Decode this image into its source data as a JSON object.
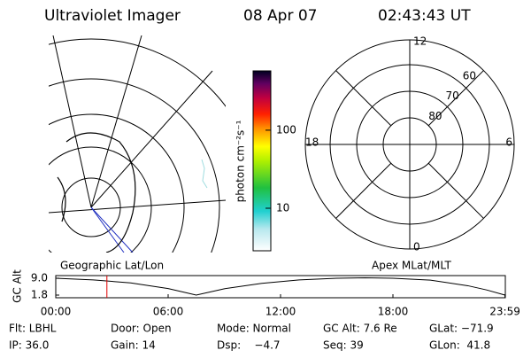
{
  "header": {
    "title": "Ultraviolet Imager",
    "date": "08 Apr 07",
    "time": "02:43:43 UT"
  },
  "colorbar": {
    "label": "photon cm⁻²s⁻¹",
    "log": true,
    "clim": [
      2.85,
      575
    ],
    "ticks": [
      10,
      100
    ]
  },
  "polar": {
    "mlt_labels": [
      12,
      6,
      0,
      18
    ],
    "lat_labels": [
      80,
      70,
      60
    ],
    "caption": "Apex MLat/MLT"
  },
  "map": {
    "caption": "Geographic Lat/Lon"
  },
  "altitude_plot": {
    "y_label": "GC Alt",
    "yticks": [
      {
        "value": 9,
        "label": "9.0"
      },
      {
        "value": 1.8,
        "label": "1.8"
      }
    ],
    "xlim": [
      0,
      24
    ],
    "xticks": [
      {
        "value": 0,
        "label": "00:00"
      },
      {
        "value": 6,
        "label": "06:00"
      },
      {
        "value": 12,
        "label": "12:00"
      },
      {
        "value": 18,
        "label": "18:00"
      },
      {
        "value": 23.98,
        "label": "23:59"
      }
    ],
    "x": [
      0,
      2,
      4,
      6,
      7.5,
      9,
      11,
      13,
      15,
      16.5,
      18,
      20,
      22,
      23,
      23.98
    ],
    "values": [
      9.0,
      8.3,
      7.0,
      4.6,
      1.8,
      4.5,
      6.8,
      8.3,
      9.0,
      9.2,
      9.0,
      8.2,
      5.8,
      4.0,
      1.8
    ],
    "marker": 2.73,
    "marker_color": "#e00000"
  },
  "info": [
    [
      "Flt: LBHL",
      "Door: Open",
      "Mode: Normal",
      "GC Alt: 7.6 Re",
      "GLat: −71.9"
    ],
    [
      "IP: 36.0",
      "Gain: 14",
      "Dsp:    −4.7",
      "Seq: 39",
      "GLon:  41.8"
    ]
  ]
}
